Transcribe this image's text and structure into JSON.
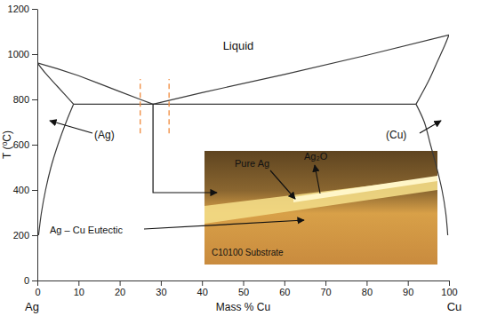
{
  "chart_data": {
    "type": "line",
    "xlabel": "Mass % Cu",
    "ylabel": "T (⁰C)",
    "xlim": [
      0,
      100
    ],
    "ylim": [
      0,
      1200
    ],
    "xticks": [
      0,
      10,
      20,
      30,
      40,
      50,
      60,
      70,
      80,
      90,
      100
    ],
    "yticks": [
      0,
      200,
      400,
      600,
      800,
      1000,
      1200
    ],
    "grid": false,
    "series": [
      {
        "color": "#3a3a3a",
        "line_style": "solid",
        "x": [
          0,
          5,
          10,
          15,
          20,
          25,
          28.1
        ],
        "values": [
          961,
          935,
          905,
          870,
          835,
          800,
          779
        ]
      },
      {
        "color": "#3a3a3a",
        "line_style": "solid",
        "x": [
          28.1,
          40,
          60,
          80,
          100
        ],
        "values": [
          779,
          830,
          910,
          995,
          1085
        ]
      },
      {
        "color": "#3a3a3a",
        "line_style": "solid",
        "x": [
          0,
          2,
          5,
          8.8
        ],
        "values": [
          961,
          915,
          855,
          779
        ]
      },
      {
        "color": "#3a3a3a",
        "line_style": "solid",
        "x": [
          8.8,
          7,
          5,
          3.3,
          2,
          1,
          0.3
        ],
        "values": [
          779,
          700,
          600,
          500,
          400,
          300,
          200
        ]
      },
      {
        "color": "#3a3a3a",
        "line_style": "solid",
        "x": [
          8.8,
          92
        ],
        "values": [
          779,
          779
        ]
      },
      {
        "color": "#3a3a3a",
        "line_style": "solid",
        "x": [
          92,
          95,
          97,
          99,
          100
        ],
        "values": [
          779,
          880,
          960,
          1040,
          1085
        ]
      },
      {
        "color": "#3a3a3a",
        "line_style": "solid",
        "x": [
          92,
          94,
          95.5,
          97,
          98.3,
          99.2,
          99.7
        ],
        "values": [
          779,
          700,
          600,
          500,
          400,
          300,
          200
        ]
      },
      {
        "color": "#f08a3c",
        "line_style": "dashed",
        "x": [
          25,
          25
        ],
        "values": [
          650,
          890
        ]
      },
      {
        "color": "#f08a3c",
        "line_style": "dashed",
        "x": [
          32,
          32
        ],
        "values": [
          650,
          890
        ]
      }
    ],
    "annotations": [
      "Liquid",
      "(Ag)",
      "(Cu)",
      "Ag",
      "Cu",
      "Pure Ag",
      "Ag₂O",
      "Ag – Cu Eutectic",
      "C10100 Substrate"
    ]
  }
}
